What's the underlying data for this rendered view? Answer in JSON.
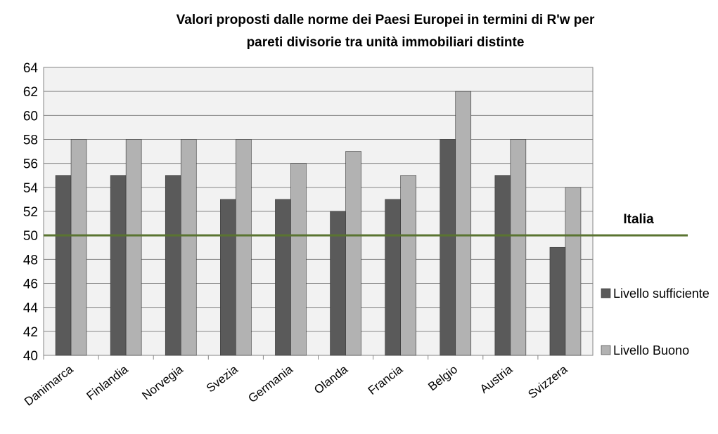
{
  "chart_data": {
    "type": "bar",
    "title": [
      "Valori proposti  dalle norme dei Paesi Europei  in termini di R'w  per",
      "pareti divisorie  tra unità immobiliari distinte"
    ],
    "categories": [
      "Danimarca",
      "Finlandia",
      "Norvegia",
      "Svezia",
      "Germania",
      "Olanda",
      "Francia",
      "Belgio",
      "Austria",
      "Svizzera"
    ],
    "series": [
      {
        "name": "Livello sufficiente",
        "color": "#5a5a5a",
        "values": [
          55,
          55,
          55,
          53,
          53,
          52,
          53,
          58,
          55,
          49
        ]
      },
      {
        "name": "Livello Buono",
        "color": "#b2b2b2",
        "values": [
          58,
          58,
          58,
          58,
          56,
          57,
          55,
          62,
          58,
          54
        ]
      }
    ],
    "ylim": [
      40,
      64
    ],
    "yticks": [
      40,
      42,
      44,
      46,
      48,
      50,
      52,
      54,
      56,
      58,
      60,
      62,
      64
    ],
    "grid": true,
    "annotations": [
      {
        "text": "Italia",
        "value": 50,
        "color": "#5a7431"
      }
    ]
  }
}
